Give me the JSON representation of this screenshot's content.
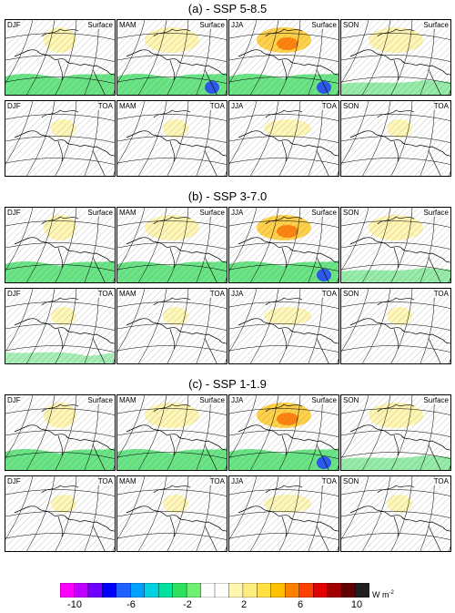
{
  "sections": [
    {
      "title": "(a) - SSP 5-8.5",
      "rows": [
        {
          "level": "Surface",
          "seasons": [
            "DJF",
            "MAM",
            "JJA",
            "SON"
          ]
        },
        {
          "level": "TOA",
          "seasons": [
            "DJF",
            "MAM",
            "JJA",
            "SON"
          ]
        }
      ]
    },
    {
      "title": "(b) - SSP 3-7.0",
      "rows": [
        {
          "level": "Surface",
          "seasons": [
            "DJF",
            "MAM",
            "JJA",
            "SON"
          ]
        },
        {
          "level": "TOA",
          "seasons": [
            "DJF",
            "MAM",
            "JJA",
            "SON"
          ]
        }
      ]
    },
    {
      "title": "(c) - SSP 1-1.9",
      "rows": [
        {
          "level": "Surface",
          "seasons": [
            "DJF",
            "MAM",
            "JJA",
            "SON"
          ]
        },
        {
          "level": "TOA",
          "seasons": [
            "DJF",
            "MAM",
            "JJA",
            "SON"
          ]
        }
      ]
    }
  ],
  "colorbar": {
    "colors": [
      "#ff00ff",
      "#c000ff",
      "#7000ff",
      "#0000ff",
      "#2060ff",
      "#00a0ff",
      "#00d0e0",
      "#00e0a0",
      "#30e060",
      "#70f070",
      "#ffffff",
      "#ffffff",
      "#fff6b0",
      "#ffec80",
      "#ffe040",
      "#ffc000",
      "#ff8000",
      "#ff4000",
      "#e00000",
      "#a00000",
      "#600000",
      "#202020"
    ],
    "ticks": [
      "-10",
      "-6",
      "-2",
      "2",
      "6",
      "10"
    ],
    "units_main": "W m",
    "units_exp": "-2"
  }
}
